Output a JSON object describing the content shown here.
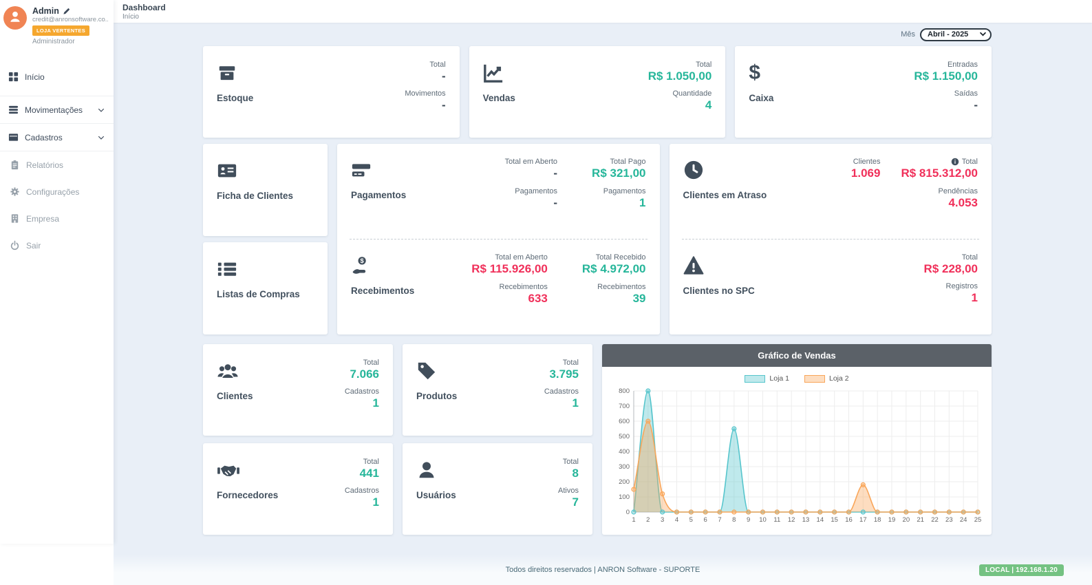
{
  "colors": {
    "accent_teal": "#26b69a",
    "accent_red": "#f0305a",
    "badge_orange": "#f5a72e",
    "badge_green": "#74c282",
    "chart_header_gray": "#5b6168",
    "content_bg": "#e9eff7",
    "loja1": "#56c5cc",
    "loja2": "#f9a65a"
  },
  "sidebar": {
    "profile": {
      "name": "Admin",
      "email": "credit@anronsoftware.co...",
      "badge": "LOJA VERTENTES",
      "role": "Administrador"
    },
    "items": [
      {
        "label": "Início"
      },
      {
        "label": "Movimentações"
      },
      {
        "label": "Cadastros"
      },
      {
        "label": "Relatórios"
      },
      {
        "label": "Configurações"
      },
      {
        "label": "Empresa"
      },
      {
        "label": "Sair"
      }
    ]
  },
  "header": {
    "title": "Dashboard",
    "breadcrumb": "Início",
    "month_label": "Mês",
    "month_value": "Abril - 2025"
  },
  "cards": {
    "estoque": {
      "title": "Estoque",
      "stats": [
        {
          "label": "Total",
          "value": "-",
          "tone": "dark"
        },
        {
          "label": "Movimentos",
          "value": "-",
          "tone": "dark"
        }
      ]
    },
    "vendas": {
      "title": "Vendas",
      "stats": [
        {
          "label": "Total",
          "value": "R$ 1.050,00",
          "tone": "teal"
        },
        {
          "label": "Quantidade",
          "value": "4",
          "tone": "teal"
        }
      ]
    },
    "caixa": {
      "title": "Caixa",
      "stats": [
        {
          "label": "Entradas",
          "value": "R$ 1.150,00",
          "tone": "teal"
        },
        {
          "label": "Saídas",
          "value": "-",
          "tone": "dark"
        }
      ]
    },
    "ficha": {
      "title": "Ficha de Clientes"
    },
    "listas": {
      "title": "Listas de Compras"
    },
    "pagamentos": {
      "title": "Pagamentos",
      "col1": [
        {
          "label": "Total em Aberto",
          "value": "-",
          "tone": "dark"
        },
        {
          "label": "Pagamentos",
          "value": "-",
          "tone": "dark"
        }
      ],
      "col2": [
        {
          "label": "Total Pago",
          "value": "R$ 321,00",
          "tone": "teal"
        },
        {
          "label": "Pagamentos",
          "value": "1",
          "tone": "teal"
        }
      ]
    },
    "recebimentos": {
      "title": "Recebimentos",
      "col1": [
        {
          "label": "Total em Aberto",
          "value": "R$ 115.926,00",
          "tone": "red"
        },
        {
          "label": "Recebimentos",
          "value": "633",
          "tone": "red"
        }
      ],
      "col2": [
        {
          "label": "Total Recebido",
          "value": "R$ 4.972,00",
          "tone": "teal"
        },
        {
          "label": "Recebimentos",
          "value": "39",
          "tone": "teal"
        }
      ]
    },
    "atraso": {
      "title": "Clientes em Atraso",
      "col1": [
        {
          "label": "Clientes",
          "value": "1.069",
          "tone": "red"
        }
      ],
      "col2": [
        {
          "label": "Total",
          "value": "R$ 815.312,00",
          "tone": "red"
        },
        {
          "label": "Pendências",
          "value": "4.053",
          "tone": "red"
        }
      ]
    },
    "spc": {
      "title": "Clientes no SPC",
      "stats": [
        {
          "label": "Total",
          "value": "R$ 228,00",
          "tone": "red"
        },
        {
          "label": "Registros",
          "value": "1",
          "tone": "red"
        }
      ]
    },
    "clientes": {
      "title": "Clientes",
      "stats": [
        {
          "label": "Total",
          "value": "7.066",
          "tone": "teal"
        },
        {
          "label": "Cadastros",
          "value": "1",
          "tone": "teal"
        }
      ]
    },
    "produtos": {
      "title": "Produtos",
      "stats": [
        {
          "label": "Total",
          "value": "3.795",
          "tone": "teal"
        },
        {
          "label": "Cadastros",
          "value": "1",
          "tone": "teal"
        }
      ]
    },
    "fornecedores": {
      "title": "Fornecedores",
      "stats": [
        {
          "label": "Total",
          "value": "441",
          "tone": "teal"
        },
        {
          "label": "Cadastros",
          "value": "1",
          "tone": "teal"
        }
      ]
    },
    "usuarios": {
      "title": "Usuários",
      "stats": [
        {
          "label": "Total",
          "value": "8",
          "tone": "teal"
        },
        {
          "label": "Ativos",
          "value": "7",
          "tone": "teal"
        }
      ]
    }
  },
  "chart_data": {
    "type": "area",
    "title": "Gráfico de Vendas",
    "x": [
      1,
      2,
      3,
      4,
      5,
      6,
      7,
      8,
      9,
      10,
      11,
      12,
      13,
      14,
      15,
      16,
      17,
      18,
      19,
      20,
      21,
      22,
      23,
      24,
      25
    ],
    "series": [
      {
        "name": "Loja 1",
        "color": "#56c5cc",
        "fill": "rgba(86,197,204,0.38)",
        "values": [
          0,
          800,
          0,
          0,
          0,
          0,
          0,
          550,
          0,
          0,
          0,
          0,
          0,
          0,
          0,
          0,
          0,
          0,
          0,
          0,
          0,
          0,
          0,
          0,
          0
        ]
      },
      {
        "name": "Loja 2",
        "color": "#f9a65a",
        "fill": "rgba(249,166,90,0.38)",
        "values": [
          150,
          600,
          120,
          0,
          0,
          0,
          0,
          0,
          0,
          0,
          0,
          0,
          0,
          0,
          0,
          0,
          180,
          0,
          0,
          0,
          0,
          0,
          0,
          0,
          0
        ]
      }
    ],
    "ylim": [
      0,
      800
    ],
    "ytick_step": 100,
    "grid": true,
    "legend_position": "top",
    "xlabel": "",
    "ylabel": ""
  },
  "footer": {
    "copyright": "Todos direitos reservados | ANRON Software - SUPORTE",
    "badge": "LOCAL | 192.168.1.20"
  }
}
